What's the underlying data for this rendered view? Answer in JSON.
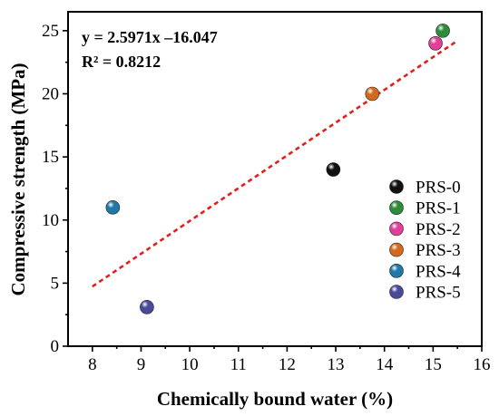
{
  "chart_data": {
    "type": "scatter",
    "xlabel": "Chemically bound water (%)",
    "ylabel": "Compressive strength (MPa)",
    "xlim": [
      7.5,
      16
    ],
    "ylim": [
      0,
      26.5
    ],
    "xticks": [
      8,
      9,
      10,
      11,
      12,
      13,
      14,
      15,
      16
    ],
    "yticks": [
      0,
      5,
      10,
      15,
      20,
      25
    ],
    "grid": false,
    "legend_position": "right",
    "series": [
      {
        "name": "PRS-0",
        "color": "#111111",
        "x": [
          12.95
        ],
        "y": [
          14.0
        ]
      },
      {
        "name": "PRS-1",
        "color": "#2e8b3a",
        "x": [
          15.2
        ],
        "y": [
          25.0
        ]
      },
      {
        "name": "PRS-2",
        "color": "#e0409a",
        "x": [
          15.05
        ],
        "y": [
          24.0
        ]
      },
      {
        "name": "PRS-3",
        "color": "#d2691e",
        "x": [
          13.75
        ],
        "y": [
          20.0
        ]
      },
      {
        "name": "PRS-4",
        "color": "#1f78a8",
        "x": [
          8.42
        ],
        "y": [
          11.0
        ]
      },
      {
        "name": "PRS-5",
        "color": "#4a4a9a",
        "x": [
          9.12
        ],
        "y": [
          3.1
        ]
      }
    ],
    "fit": {
      "equation": "y = 2.5971x –16.047",
      "r2": "R² = 0.8212",
      "slope": 2.5971,
      "intercept": -16.047,
      "x_range": [
        8.0,
        15.5
      ],
      "color": "#e0201c"
    }
  }
}
